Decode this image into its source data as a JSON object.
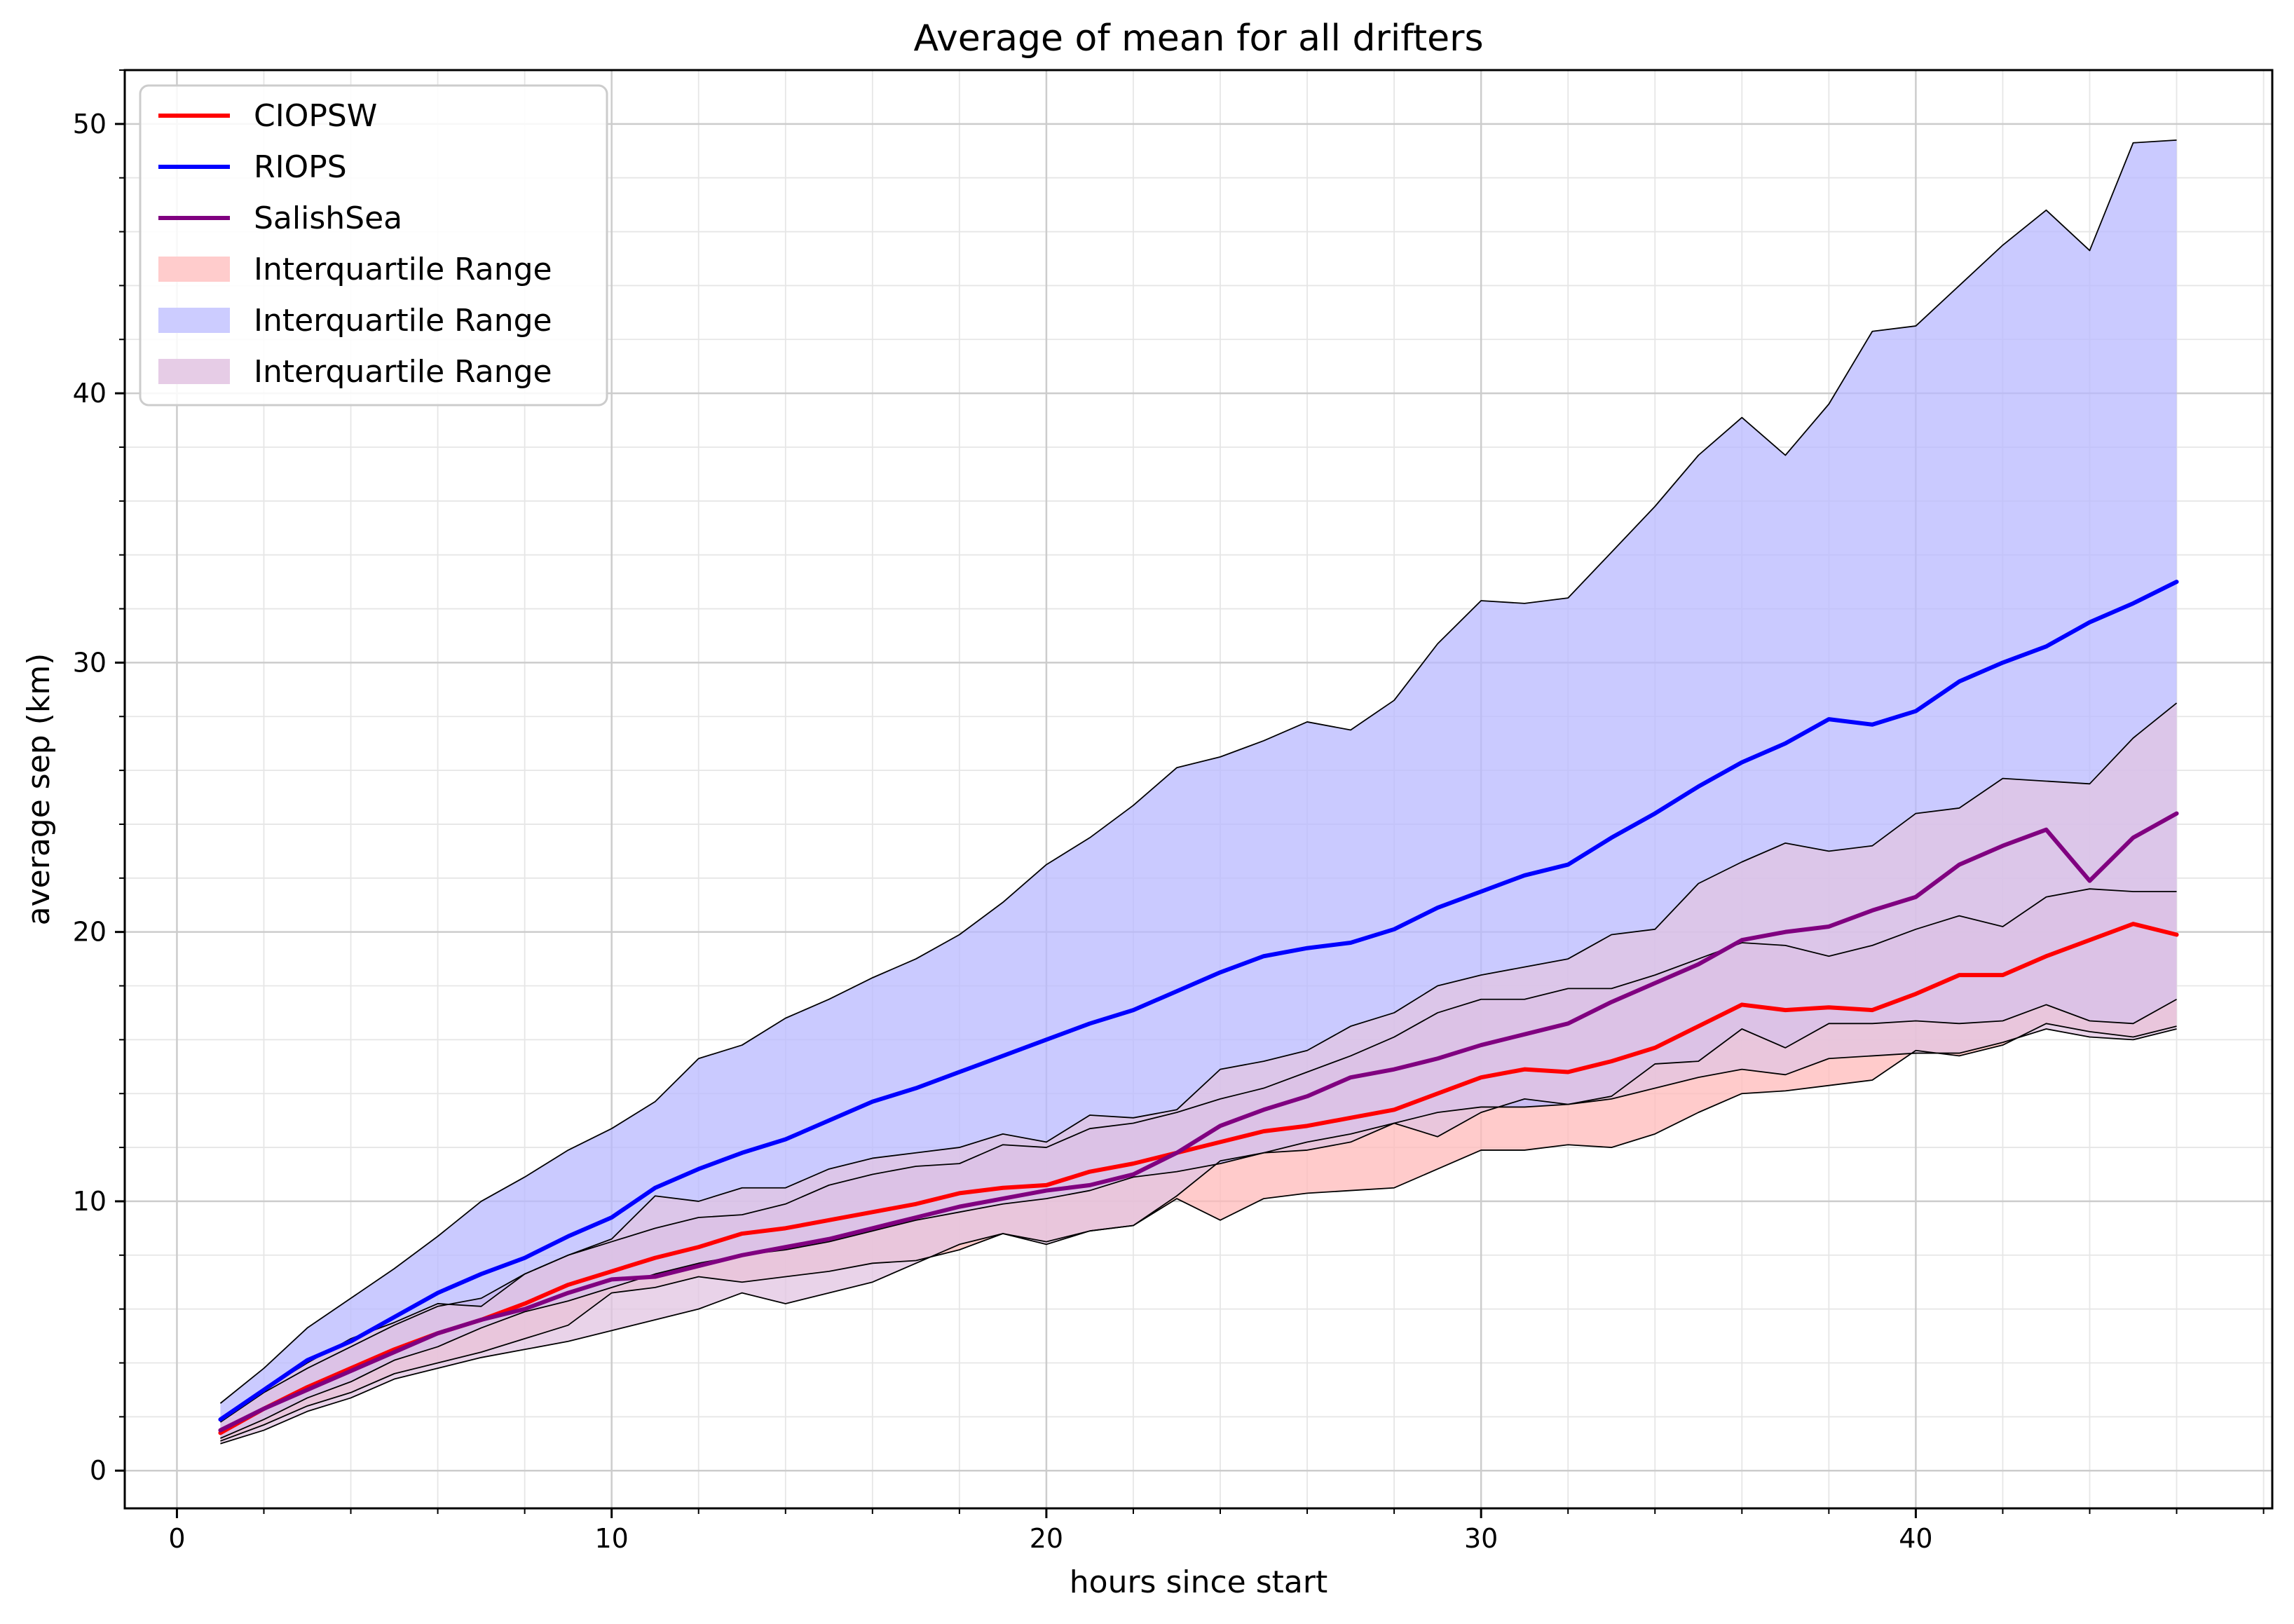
{
  "chart_data": {
    "type": "line",
    "title": "Average of mean for all drifters",
    "xlabel": "hours since start",
    "ylabel": "average sep (km)",
    "xlim": [
      -1.2,
      48.2
    ],
    "ylim": [
      -1.4,
      52.0
    ],
    "x_ticks": [
      0,
      10,
      20,
      30,
      40
    ],
    "y_ticks": [
      0,
      10,
      20,
      30,
      40,
      50
    ],
    "grid": "major and minor",
    "legend_position": "top-left",
    "x": [
      1,
      2,
      3,
      4,
      5,
      6,
      7,
      8,
      9,
      10,
      11,
      12,
      13,
      14,
      15,
      16,
      17,
      18,
      19,
      20,
      21,
      22,
      23,
      24,
      25,
      26,
      27,
      28,
      29,
      30,
      31,
      32,
      33,
      34,
      35,
      36,
      37,
      38,
      39,
      40,
      41,
      42,
      43,
      44,
      45,
      46
    ],
    "series": [
      {
        "name": "CIOPSW",
        "color": "#ff0000",
        "band_color": "#ffbaba",
        "values": [
          1.4,
          2.3,
          3.1,
          3.8,
          4.5,
          5.1,
          5.6,
          6.2,
          6.9,
          7.4,
          7.9,
          8.3,
          8.8,
          9.0,
          9.3,
          9.6,
          9.9,
          10.3,
          10.5,
          10.6,
          11.1,
          11.4,
          11.8,
          12.2,
          12.6,
          12.8,
          13.1,
          13.4,
          14.0,
          14.6,
          14.9,
          14.8,
          15.2,
          15.7,
          16.5,
          17.3,
          17.1,
          17.2,
          17.1,
          17.7,
          18.4,
          18.4,
          19.1,
          19.7,
          20.3,
          19.9
        ],
        "q1": [
          1.1,
          1.7,
          2.4,
          2.9,
          3.6,
          4.0,
          4.4,
          4.9,
          5.4,
          6.6,
          6.8,
          7.2,
          7.0,
          7.2,
          7.4,
          7.7,
          7.8,
          8.2,
          8.8,
          8.5,
          8.9,
          9.1,
          10.1,
          9.3,
          10.1,
          10.3,
          10.4,
          10.5,
          11.2,
          11.9,
          11.9,
          12.1,
          12.0,
          12.5,
          13.3,
          14.0,
          14.1,
          14.3,
          14.5,
          15.6,
          15.4,
          15.8,
          16.6,
          16.3,
          16.1,
          16.5
        ],
        "q3": [
          1.8,
          2.9,
          3.8,
          4.6,
          5.4,
          6.1,
          6.4,
          7.3,
          8.0,
          8.5,
          9.0,
          9.4,
          9.5,
          9.9,
          10.6,
          11.0,
          11.3,
          11.4,
          12.1,
          12.0,
          12.7,
          12.9,
          13.3,
          13.8,
          14.2,
          14.8,
          15.4,
          16.1,
          17.0,
          17.5,
          17.5,
          17.9,
          17.9,
          18.4,
          19.0,
          19.6,
          19.5,
          19.1,
          19.5,
          20.1,
          20.6,
          20.2,
          21.3,
          21.6,
          21.5,
          21.5
        ]
      },
      {
        "name": "RIOPS",
        "color": "#0000ff",
        "band_color": "#b8b8ff",
        "values": [
          1.9,
          3.0,
          4.1,
          4.8,
          5.7,
          6.6,
          7.3,
          7.9,
          8.7,
          9.4,
          10.5,
          11.2,
          11.8,
          12.3,
          13.0,
          13.7,
          14.2,
          14.8,
          15.4,
          16.0,
          16.6,
          17.1,
          17.8,
          18.5,
          19.1,
          19.4,
          19.6,
          20.1,
          20.9,
          21.5,
          22.1,
          22.5,
          23.5,
          24.4,
          25.4,
          26.3,
          27.0,
          27.9,
          27.7,
          28.2,
          29.3,
          30.0,
          30.6,
          31.5,
          32.2,
          33.0
        ],
        "q1": [
          1.2,
          1.9,
          2.7,
          3.3,
          4.1,
          4.6,
          5.3,
          5.9,
          6.3,
          6.8,
          7.3,
          7.7,
          8.0,
          8.2,
          8.5,
          8.9,
          9.3,
          9.6,
          9.9,
          10.1,
          10.4,
          10.9,
          11.1,
          11.4,
          11.8,
          12.2,
          12.5,
          12.9,
          13.3,
          13.5,
          13.5,
          13.6,
          13.9,
          15.1,
          15.2,
          16.4,
          15.7,
          16.6,
          16.6,
          16.7,
          16.6,
          16.7,
          17.3,
          16.7,
          16.6,
          17.5
        ],
        "q3": [
          2.5,
          3.8,
          5.3,
          6.4,
          7.5,
          8.7,
          10.0,
          10.9,
          11.9,
          12.7,
          13.7,
          15.3,
          15.8,
          16.8,
          17.5,
          18.3,
          19.0,
          19.9,
          21.1,
          22.5,
          23.5,
          24.7,
          26.1,
          26.5,
          27.1,
          27.8,
          27.5,
          28.6,
          30.7,
          32.3,
          32.2,
          32.4,
          34.1,
          35.8,
          37.7,
          39.1,
          37.7,
          39.6,
          42.3,
          42.5,
          44.0,
          45.5,
          46.8,
          45.3,
          49.3,
          49.4
        ]
      },
      {
        "name": "SalishSea",
        "color": "#800080",
        "band_color": "#e2c4e2",
        "values": [
          1.5,
          2.3,
          3.0,
          3.7,
          4.4,
          5.1,
          5.6,
          6.0,
          6.6,
          7.1,
          7.2,
          7.6,
          8.0,
          8.3,
          8.6,
          9.0,
          9.4,
          9.8,
          10.1,
          10.4,
          10.6,
          11.0,
          11.8,
          12.8,
          13.4,
          13.9,
          14.6,
          14.9,
          15.3,
          15.8,
          16.2,
          16.6,
          17.4,
          18.1,
          18.8,
          19.7,
          20.0,
          20.2,
          20.8,
          21.3,
          22.5,
          23.2,
          23.8,
          21.9,
          23.5,
          24.4
        ],
        "q1": [
          1.0,
          1.5,
          2.2,
          2.7,
          3.4,
          3.8,
          4.2,
          4.5,
          4.8,
          5.2,
          5.6,
          6.0,
          6.6,
          6.2,
          6.6,
          7.0,
          7.7,
          8.4,
          8.8,
          8.4,
          8.9,
          9.1,
          10.2,
          11.5,
          11.8,
          11.9,
          12.2,
          12.9,
          12.4,
          13.3,
          13.8,
          13.6,
          13.8,
          14.2,
          14.6,
          14.9,
          14.7,
          15.3,
          15.4,
          15.5,
          15.5,
          15.9,
          16.4,
          16.1,
          16.0,
          16.4
        ],
        "q3": [
          1.9,
          3.0,
          4.0,
          4.9,
          5.5,
          6.2,
          6.1,
          7.3,
          8.0,
          8.6,
          10.2,
          10.0,
          10.5,
          10.5,
          11.2,
          11.6,
          11.8,
          12.0,
          12.5,
          12.2,
          13.2,
          13.1,
          13.4,
          14.9,
          15.2,
          15.6,
          16.5,
          17.0,
          18.0,
          18.4,
          18.7,
          19.0,
          19.9,
          20.1,
          21.8,
          22.6,
          23.3,
          23.0,
          23.2,
          24.4,
          24.6,
          25.7,
          25.6,
          25.5,
          27.2,
          28.5
        ]
      }
    ],
    "legend": [
      {
        "label": "CIOPSW",
        "kind": "line",
        "color": "#ff0000"
      },
      {
        "label": "RIOPS",
        "kind": "line",
        "color": "#0000ff"
      },
      {
        "label": "SalishSea",
        "kind": "line",
        "color": "#800080"
      },
      {
        "label": "Interquartile Range",
        "kind": "patch",
        "color": "#ffcccc"
      },
      {
        "label": "Interquartile Range",
        "kind": "patch",
        "color": "#ccccff"
      },
      {
        "label": "Interquartile Range",
        "kind": "patch",
        "color": "#e6cce6"
      }
    ]
  }
}
